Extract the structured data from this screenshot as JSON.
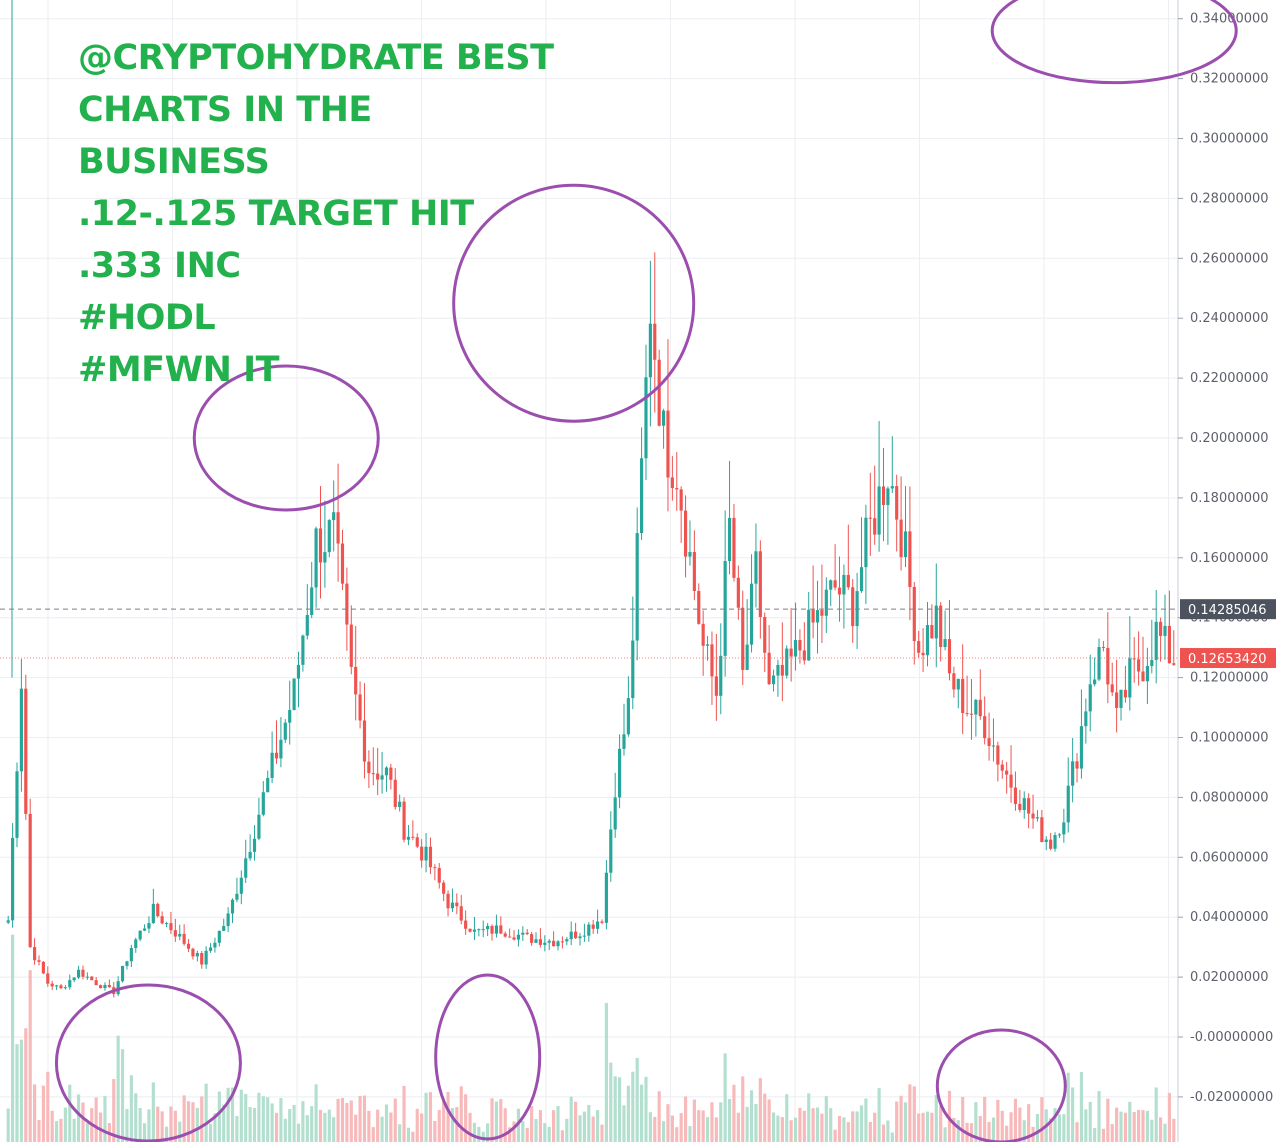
{
  "annotation_lines": [
    "@CRYPTOHYDRATE BEST",
    "CHARTS IN THE",
    "BUSINESS",
    ".12-.125 TARGET HIT",
    ".333 INC",
    "#HODL",
    "#MFWN IT"
  ],
  "colors": {
    "up": "#26a69a",
    "down": "#ef5350",
    "up_volume": "#b3dfcf",
    "down_volume": "#f7b9b9",
    "circle": "#9b4eae",
    "text_overlay": "#22b14c",
    "grid": "#eceef2",
    "last_price_tag": "#ef5350",
    "crosshair_tag": "#4c525e"
  },
  "chart_data": {
    "type": "candlestick",
    "ylim": [
      -0.03,
      0.345
    ],
    "y_ticks": [
      "0.34000000",
      "0.32000000",
      "0.30000000",
      "0.28000000",
      "0.26000000",
      "0.24000000",
      "0.22000000",
      "0.20000000",
      "0.18000000",
      "0.16000000",
      "0.14000000",
      "0.12000000",
      "0.10000000",
      "0.08000000",
      "0.06000000",
      "0.04000000",
      "0.02000000",
      "-0.00000000",
      "-0.02000000"
    ],
    "y_tick_values": [
      0.34,
      0.32,
      0.3,
      0.28,
      0.26,
      0.24,
      0.22,
      0.2,
      0.18,
      0.16,
      0.14,
      0.12,
      0.1,
      0.08,
      0.06,
      0.04,
      0.02,
      0.0,
      -0.02
    ],
    "crosshair_price": "0.14285046",
    "crosshair_value": 0.14285046,
    "last_price": "0.12653420",
    "last_value": 0.1265342,
    "price_keypoints": [
      [
        0,
        0.039
      ],
      [
        3,
        0.12
      ],
      [
        5,
        0.03
      ],
      [
        9,
        0.018
      ],
      [
        12,
        0.016
      ],
      [
        16,
        0.022
      ],
      [
        20,
        0.018
      ],
      [
        24,
        0.015
      ],
      [
        28,
        0.03
      ],
      [
        33,
        0.042
      ],
      [
        38,
        0.035
      ],
      [
        44,
        0.025
      ],
      [
        50,
        0.04
      ],
      [
        55,
        0.065
      ],
      [
        60,
        0.09
      ],
      [
        65,
        0.115
      ],
      [
        70,
        0.165
      ],
      [
        74,
        0.168
      ],
      [
        78,
        0.12
      ],
      [
        82,
        0.09
      ],
      [
        86,
        0.088
      ],
      [
        90,
        0.07
      ],
      [
        95,
        0.06
      ],
      [
        100,
        0.045
      ],
      [
        106,
        0.035
      ],
      [
        112,
        0.036
      ],
      [
        118,
        0.033
      ],
      [
        124,
        0.032
      ],
      [
        130,
        0.035
      ],
      [
        135,
        0.04
      ],
      [
        138,
        0.085
      ],
      [
        141,
        0.11
      ],
      [
        143,
        0.16
      ],
      [
        146,
        0.245
      ],
      [
        149,
        0.2
      ],
      [
        152,
        0.19
      ],
      [
        155,
        0.16
      ],
      [
        158,
        0.13
      ],
      [
        161,
        0.115
      ],
      [
        164,
        0.17
      ],
      [
        167,
        0.12
      ],
      [
        170,
        0.155
      ],
      [
        173,
        0.115
      ],
      [
        176,
        0.12
      ],
      [
        180,
        0.13
      ],
      [
        184,
        0.14
      ],
      [
        188,
        0.15
      ],
      [
        192,
        0.145
      ],
      [
        196,
        0.17
      ],
      [
        200,
        0.19
      ],
      [
        203,
        0.17
      ],
      [
        207,
        0.13
      ],
      [
        211,
        0.14
      ],
      [
        214,
        0.12
      ],
      [
        218,
        0.11
      ],
      [
        222,
        0.105
      ],
      [
        226,
        0.09
      ],
      [
        230,
        0.08
      ],
      [
        234,
        0.07
      ],
      [
        237,
        0.065
      ],
      [
        240,
        0.075
      ],
      [
        243,
        0.095
      ],
      [
        246,
        0.12
      ],
      [
        249,
        0.13
      ],
      [
        252,
        0.105
      ],
      [
        255,
        0.12
      ],
      [
        258,
        0.125
      ],
      [
        261,
        0.135
      ],
      [
        263,
        0.13
      ],
      [
        265,
        0.1265
      ]
    ],
    "volume_ylim": [
      0,
      0.3
    ]
  },
  "circles": [
    {
      "cx_frac": 0.243,
      "cy_val": 0.2,
      "rx": 92,
      "ry": 72,
      "name": "circle-first-peak"
    },
    {
      "cx_frac": 0.487,
      "cy_val": 0.245,
      "rx": 120,
      "ry": 118,
      "name": "circle-second-peak"
    },
    {
      "cx_frac": 0.872,
      "cy_val": 0.336,
      "rx": 122,
      "ry": 52,
      "name": "circle-target-0333"
    },
    {
      "cx_frac": 0.126,
      "cy_val": -0.0145,
      "rx": 92,
      "ry": 78,
      "name": "circle-volume-1"
    },
    {
      "cx_frac": 0.414,
      "cy_val": -0.0145,
      "rx": 52,
      "ry": 82,
      "name": "circle-volume-2"
    },
    {
      "cx_frac": 0.85,
      "cy_val": -0.02,
      "rx": 64,
      "ry": 56,
      "name": "circle-volume-3"
    }
  ]
}
